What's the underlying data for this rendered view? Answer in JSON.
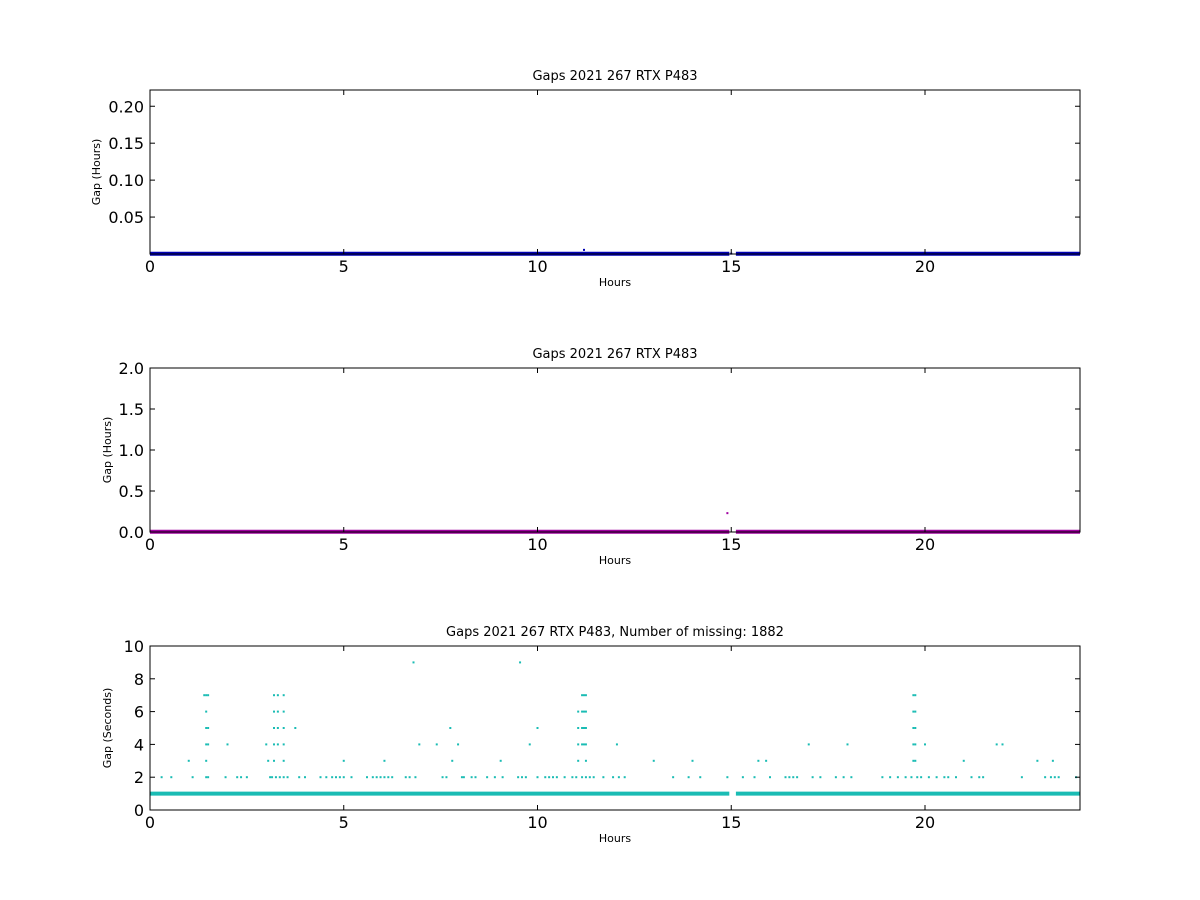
{
  "chart_data": [
    {
      "type": "scatter",
      "title": "Gaps 2021 267 RTX  P483",
      "xlabel": "Hours",
      "ylabel": "Gap (Hours)",
      "xlim": [
        0,
        24
      ],
      "ylim": [
        0,
        0.222
      ],
      "xticks": [
        0,
        5,
        10,
        15,
        20
      ],
      "yticks": [
        0.05,
        0.1,
        0.15,
        0.2
      ],
      "ytick_labels": [
        "0.05",
        "0.10",
        "0.15",
        "0.20"
      ],
      "xtick_labels": [
        "0",
        "5",
        "10",
        "15",
        "20"
      ],
      "grid": false,
      "color": "#0000b4",
      "series": [
        {
          "baseline": {
            "y": 0.000278,
            "x_ranges": [
              [
                0,
                14.95
              ],
              [
                15.12,
                24
              ]
            ]
          },
          "points": [
            [
              11.2,
              0.0056
            ],
            [
              15.0,
              0.0005
            ]
          ]
        }
      ]
    },
    {
      "type": "scatter",
      "title": "Gaps 2021 267 RTX  P483",
      "xlabel": "Hours",
      "ylabel": "Gap (Hours)",
      "xlim": [
        0,
        24
      ],
      "ylim": [
        0,
        2.0
      ],
      "xticks": [
        0,
        5,
        10,
        15,
        20
      ],
      "yticks": [
        0.0,
        0.5,
        1.0,
        1.5,
        2.0
      ],
      "ytick_labels": [
        "0.0",
        "0.5",
        "1.0",
        "1.5",
        "2.0"
      ],
      "xtick_labels": [
        "0",
        "5",
        "10",
        "15",
        "20"
      ],
      "grid": false,
      "color": "#a000a0",
      "series": [
        {
          "baseline": {
            "y": 0.003,
            "x_ranges": [
              [
                0,
                14.95
              ],
              [
                15.12,
                24
              ]
            ]
          },
          "points": [
            [
              14.9,
              0.23
            ]
          ]
        }
      ]
    },
    {
      "type": "scatter",
      "title": "Gaps 2021 267 RTX  P483, Number of missing: 1882",
      "xlabel": "Hours",
      "ylabel": "Gap (Seconds)",
      "xlim": [
        0,
        24
      ],
      "ylim": [
        0,
        10
      ],
      "xticks": [
        0,
        5,
        10,
        15,
        20
      ],
      "yticks": [
        0,
        2,
        4,
        6,
        8,
        10
      ],
      "ytick_labels": [
        "0",
        "2",
        "4",
        "6",
        "8",
        "10"
      ],
      "xtick_labels": [
        "0",
        "5",
        "10",
        "15",
        "20"
      ],
      "grid": false,
      "color": "#1abcb4",
      "series": [
        {
          "baseline": {
            "y": 1,
            "x_ranges": [
              [
                0,
                14.95
              ],
              [
                15.12,
                24
              ]
            ]
          },
          "points": [
            [
              0.3,
              2
            ],
            [
              0.55,
              2
            ],
            [
              1.0,
              3
            ],
            [
              1.1,
              2
            ],
            [
              1.4,
              7
            ],
            [
              1.45,
              7
            ],
            [
              1.5,
              7
            ],
            [
              1.45,
              6
            ],
            [
              1.45,
              5
            ],
            [
              1.5,
              5
            ],
            [
              1.45,
              4
            ],
            [
              1.5,
              4
            ],
            [
              1.45,
              3
            ],
            [
              1.45,
              2
            ],
            [
              1.5,
              2
            ],
            [
              1.95,
              2
            ],
            [
              2.0,
              4
            ],
            [
              2.25,
              2
            ],
            [
              2.35,
              2
            ],
            [
              2.5,
              2
            ],
            [
              3.0,
              4
            ],
            [
              3.05,
              3
            ],
            [
              3.1,
              2
            ],
            [
              3.2,
              7
            ],
            [
              3.3,
              7
            ],
            [
              3.45,
              7
            ],
            [
              3.2,
              6
            ],
            [
              3.3,
              6
            ],
            [
              3.45,
              6
            ],
            [
              3.2,
              5
            ],
            [
              3.3,
              5
            ],
            [
              3.45,
              5
            ],
            [
              3.2,
              4
            ],
            [
              3.3,
              4
            ],
            [
              3.45,
              4
            ],
            [
              3.2,
              3
            ],
            [
              3.45,
              3
            ],
            [
              3.15,
              2
            ],
            [
              3.25,
              2
            ],
            [
              3.35,
              2
            ],
            [
              3.45,
              2
            ],
            [
              3.55,
              2
            ],
            [
              3.75,
              5
            ],
            [
              3.85,
              2
            ],
            [
              4.0,
              2
            ],
            [
              4.4,
              2
            ],
            [
              4.55,
              2
            ],
            [
              4.7,
              2
            ],
            [
              4.8,
              2
            ],
            [
              4.9,
              2
            ],
            [
              5.0,
              2
            ],
            [
              5.0,
              3
            ],
            [
              5.2,
              2
            ],
            [
              5.6,
              2
            ],
            [
              5.75,
              2
            ],
            [
              5.85,
              2
            ],
            [
              5.95,
              2
            ],
            [
              6.05,
              3
            ],
            [
              6.05,
              2
            ],
            [
              6.15,
              2
            ],
            [
              6.25,
              2
            ],
            [
              6.6,
              2
            ],
            [
              6.7,
              2
            ],
            [
              6.8,
              9
            ],
            [
              6.85,
              2
            ],
            [
              6.95,
              4
            ],
            [
              7.4,
              4
            ],
            [
              7.55,
              2
            ],
            [
              7.65,
              2
            ],
            [
              7.75,
              5
            ],
            [
              7.8,
              3
            ],
            [
              7.95,
              4
            ],
            [
              8.05,
              2
            ],
            [
              8.1,
              2
            ],
            [
              8.3,
              2
            ],
            [
              8.4,
              2
            ],
            [
              8.7,
              2
            ],
            [
              8.9,
              2
            ],
            [
              9.05,
              3
            ],
            [
              9.1,
              2
            ],
            [
              9.5,
              2
            ],
            [
              9.55,
              9
            ],
            [
              9.6,
              2
            ],
            [
              9.7,
              2
            ],
            [
              9.8,
              4
            ],
            [
              10.0,
              5
            ],
            [
              10.0,
              2
            ],
            [
              10.2,
              2
            ],
            [
              10.3,
              2
            ],
            [
              10.4,
              2
            ],
            [
              10.5,
              2
            ],
            [
              10.7,
              2
            ],
            [
              10.9,
              2
            ],
            [
              11.0,
              2
            ],
            [
              11.05,
              3
            ],
            [
              11.05,
              4
            ],
            [
              11.05,
              5
            ],
            [
              11.05,
              6
            ],
            [
              11.15,
              7
            ],
            [
              11.2,
              7
            ],
            [
              11.25,
              7
            ],
            [
              11.15,
              6
            ],
            [
              11.2,
              6
            ],
            [
              11.25,
              6
            ],
            [
              11.15,
              5
            ],
            [
              11.2,
              5
            ],
            [
              11.25,
              5
            ],
            [
              11.15,
              4
            ],
            [
              11.2,
              4
            ],
            [
              11.25,
              4
            ],
            [
              11.25,
              3
            ],
            [
              11.15,
              2
            ],
            [
              11.25,
              2
            ],
            [
              11.35,
              2
            ],
            [
              11.45,
              2
            ],
            [
              11.7,
              2
            ],
            [
              11.95,
              2
            ],
            [
              12.05,
              4
            ],
            [
              12.1,
              2
            ],
            [
              12.25,
              2
            ],
            [
              13.0,
              3
            ],
            [
              13.5,
              2
            ],
            [
              13.9,
              2
            ],
            [
              14.0,
              3
            ],
            [
              14.2,
              2
            ],
            [
              14.9,
              2
            ],
            [
              15.3,
              2
            ],
            [
              15.6,
              2
            ],
            [
              15.7,
              3
            ],
            [
              15.9,
              3
            ],
            [
              16.0,
              2
            ],
            [
              16.4,
              2
            ],
            [
              16.5,
              2
            ],
            [
              16.6,
              2
            ],
            [
              16.7,
              2
            ],
            [
              17.0,
              4
            ],
            [
              17.1,
              2
            ],
            [
              17.3,
              2
            ],
            [
              17.7,
              2
            ],
            [
              17.9,
              2
            ],
            [
              18.0,
              4
            ],
            [
              18.1,
              2
            ],
            [
              18.9,
              2
            ],
            [
              19.1,
              2
            ],
            [
              19.3,
              2
            ],
            [
              19.5,
              2
            ],
            [
              19.65,
              2
            ],
            [
              19.7,
              7
            ],
            [
              19.75,
              7
            ],
            [
              19.7,
              6
            ],
            [
              19.75,
              6
            ],
            [
              19.7,
              5
            ],
            [
              19.75,
              5
            ],
            [
              19.7,
              4
            ],
            [
              19.75,
              4
            ],
            [
              19.7,
              3
            ],
            [
              19.75,
              3
            ],
            [
              19.8,
              2
            ],
            [
              19.9,
              2
            ],
            [
              20.0,
              4
            ],
            [
              20.1,
              2
            ],
            [
              20.3,
              2
            ],
            [
              20.5,
              2
            ],
            [
              20.6,
              2
            ],
            [
              20.8,
              2
            ],
            [
              21.0,
              3
            ],
            [
              21.2,
              2
            ],
            [
              21.4,
              2
            ],
            [
              21.5,
              2
            ],
            [
              21.85,
              4
            ],
            [
              22.0,
              4
            ],
            [
              22.5,
              2
            ],
            [
              22.9,
              3
            ],
            [
              23.1,
              2
            ],
            [
              23.25,
              2
            ],
            [
              23.3,
              3
            ],
            [
              23.35,
              2
            ],
            [
              23.45,
              2
            ],
            [
              23.9,
              2
            ]
          ]
        }
      ]
    }
  ]
}
